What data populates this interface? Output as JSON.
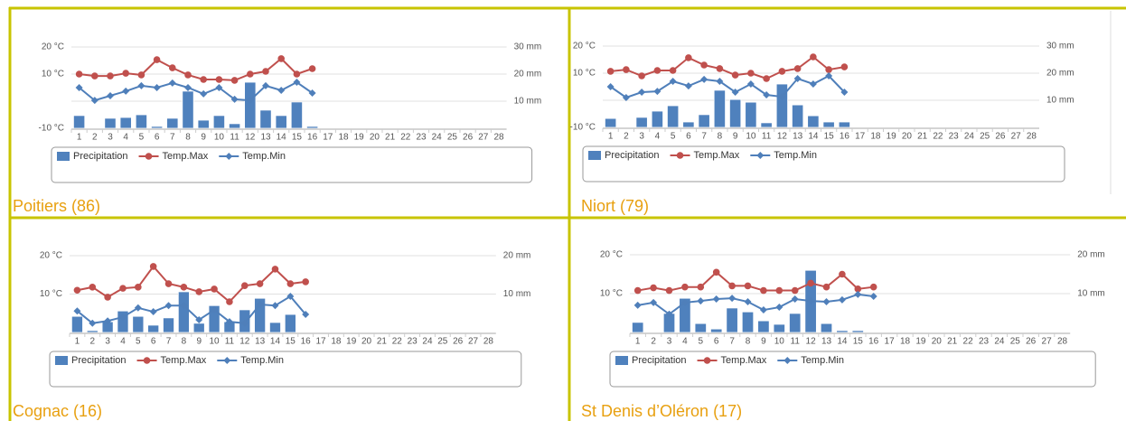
{
  "chart_data": [
    {
      "type": "combo",
      "title": "Poitiers (86)",
      "categories": [
        "1",
        "2",
        "3",
        "4",
        "5",
        "6",
        "7",
        "8",
        "9",
        "10",
        "11",
        "12",
        "13",
        "14",
        "15",
        "16",
        "17",
        "18",
        "19",
        "20",
        "21",
        "22",
        "23",
        "24",
        "25",
        "26",
        "27",
        "28"
      ],
      "series": [
        {
          "name": "Precipitation",
          "type": "bar",
          "axis": "y2",
          "color": "#4f81bd",
          "values": [
            4.7,
            0,
            3.7,
            4,
            5,
            0.7,
            3.7,
            13.7,
            3,
            4.7,
            1.7,
            17,
            6.7,
            4.7,
            9.7,
            0.7,
            null,
            null,
            null,
            null,
            null,
            null,
            null,
            null,
            null,
            null,
            null,
            null
          ]
        },
        {
          "name": "Temp.Max",
          "type": "line",
          "marker": "circle",
          "color": "#c0504d",
          "values": [
            10,
            9.3,
            9.3,
            10.3,
            9.7,
            15.3,
            12.3,
            9.7,
            8,
            8,
            7.7,
            10,
            11,
            15.7,
            10,
            12,
            null,
            null,
            null,
            null,
            null,
            null,
            null,
            null,
            null,
            null,
            null,
            null
          ]
        },
        {
          "name": "Temp.Min",
          "type": "line",
          "marker": "diamond",
          "color": "#4f7fba",
          "values": [
            5,
            0.3,
            2,
            3.7,
            5.7,
            5,
            6.7,
            5,
            2.7,
            5,
            0.7,
            0.3,
            5.7,
            4,
            7,
            3,
            null,
            null,
            null,
            null,
            null,
            null,
            null,
            null,
            null,
            null,
            null,
            null
          ]
        }
      ],
      "ylim": [
        -10,
        20
      ],
      "yticks": [
        {
          "value": -10,
          "label": "-10 °C"
        },
        {
          "value": 10,
          "label": "10 °C"
        },
        {
          "value": 20,
          "label": "20 °C"
        }
      ],
      "y2lim": [
        0,
        30
      ],
      "y2ticks": [
        {
          "value": 10,
          "label": "10 mm"
        },
        {
          "value": 20,
          "label": "20 mm"
        },
        {
          "value": 30,
          "label": "30 mm"
        }
      ],
      "grid": true
    },
    {
      "type": "combo",
      "title": "Niort (79)",
      "categories": [
        "1",
        "2",
        "3",
        "4",
        "5",
        "6",
        "7",
        "8",
        "9",
        "10",
        "11",
        "12",
        "13",
        "14",
        "15",
        "16",
        "17",
        "18",
        "19",
        "20",
        "21",
        "22",
        "23",
        "24",
        "25",
        "26",
        "27",
        "28"
      ],
      "series": [
        {
          "name": "Precipitation",
          "type": "bar",
          "axis": "y2",
          "color": "#4f81bd",
          "values": [
            3.3,
            0,
            3.7,
            6,
            8,
            2,
            4.7,
            13.7,
            10.3,
            9.3,
            1.7,
            16,
            8.3,
            4.3,
            2,
            2,
            null,
            null,
            null,
            null,
            null,
            null,
            null,
            null,
            null,
            null,
            null,
            null
          ]
        },
        {
          "name": "Temp.Max",
          "type": "line",
          "marker": "circle",
          "color": "#c0504d",
          "values": [
            10.7,
            11.3,
            9,
            11,
            11,
            15.7,
            13,
            11.7,
            9.3,
            10,
            8,
            10.7,
            11.7,
            16,
            11.3,
            12.3,
            null,
            null,
            null,
            null,
            null,
            null,
            null,
            null,
            null,
            null,
            null,
            null
          ]
        },
        {
          "name": "Temp.Min",
          "type": "line",
          "marker": "diamond",
          "color": "#4f7fba",
          "values": [
            5,
            1,
            3,
            3.3,
            7,
            5.3,
            7.7,
            7,
            3,
            6,
            2,
            1.3,
            8,
            6,
            9,
            3,
            null,
            null,
            null,
            null,
            null,
            null,
            null,
            null,
            null,
            null,
            null,
            null
          ]
        }
      ],
      "ylim": [
        -10,
        20
      ],
      "yticks": [
        {
          "value": -10,
          "label": "-10 °C"
        },
        {
          "value": 10,
          "label": "10 °C"
        },
        {
          "value": 20,
          "label": "20 °C"
        }
      ],
      "y2lim": [
        0,
        30
      ],
      "y2ticks": [
        {
          "value": 10,
          "label": "10 mm"
        },
        {
          "value": 20,
          "label": "20 mm"
        },
        {
          "value": 30,
          "label": "30 mm"
        }
      ],
      "grid": true
    },
    {
      "type": "combo",
      "title": "Cognac (16)",
      "categories": [
        "1",
        "2",
        "3",
        "4",
        "5",
        "6",
        "7",
        "8",
        "9",
        "10",
        "11",
        "12",
        "13",
        "14",
        "15",
        "16",
        "17",
        "18",
        "19",
        "20",
        "21",
        "22",
        "23",
        "24",
        "25",
        "26",
        "27",
        "28"
      ],
      "series": [
        {
          "name": "Precipitation",
          "type": "bar",
          "axis": "y2",
          "color": "#4f81bd",
          "values": [
            4.2,
            0.5,
            2.8,
            5.6,
            4.2,
            1.9,
            3.8,
            10.6,
            2.4,
            7,
            2.8,
            5.9,
            8.9,
            2.6,
            4.7,
            0,
            null,
            null,
            null,
            null,
            null,
            null,
            null,
            null,
            null,
            null,
            null,
            null
          ]
        },
        {
          "name": "Temp.Max",
          "type": "line",
          "marker": "circle",
          "color": "#c0504d",
          "values": [
            11,
            11.8,
            9.2,
            11.5,
            11.8,
            17.2,
            12.7,
            11.8,
            10.6,
            11.3,
            8,
            12.2,
            12.7,
            16.5,
            12.7,
            13.2,
            null,
            null,
            null,
            null,
            null,
            null,
            null,
            null,
            null,
            null,
            null,
            null
          ]
        },
        {
          "name": "Temp.Min",
          "type": "line",
          "marker": "diamond",
          "color": "#4f7fba",
          "values": [
            5.6,
            2.4,
            3,
            4,
            6.4,
            5.4,
            7,
            7,
            3.3,
            5.9,
            2.8,
            2.4,
            7.3,
            7,
            9.4,
            4.7,
            null,
            null,
            null,
            null,
            null,
            null,
            null,
            null,
            null,
            null,
            null,
            null
          ]
        }
      ],
      "ylim": [
        0,
        20
      ],
      "yticks": [
        {
          "value": 10,
          "label": "10 °C"
        },
        {
          "value": 20,
          "label": "20 °C"
        }
      ],
      "y2lim": [
        0,
        20
      ],
      "y2ticks": [
        {
          "value": 10,
          "label": "10 mm"
        },
        {
          "value": 20,
          "label": "20 mm"
        }
      ],
      "grid": true
    },
    {
      "type": "combo",
      "title": "St Denis d’Oléron (17)",
      "categories": [
        "1",
        "2",
        "3",
        "4",
        "5",
        "6",
        "7",
        "8",
        "9",
        "10",
        "11",
        "12",
        "13",
        "14",
        "15",
        "16",
        "17",
        "18",
        "19",
        "20",
        "21",
        "22",
        "23",
        "24",
        "25",
        "26",
        "27",
        "28"
      ],
      "series": [
        {
          "name": "Precipitation",
          "type": "bar",
          "axis": "y2",
          "color": "#4f81bd",
          "values": [
            2.6,
            0,
            4.9,
            8.8,
            2.3,
            0.9,
            6.3,
            5.3,
            3,
            2.1,
            4.9,
            16,
            2.3,
            0.5,
            0.5,
            0,
            null,
            null,
            null,
            null,
            null,
            null,
            null,
            null,
            null,
            null,
            null,
            null
          ]
        },
        {
          "name": "Temp.Max",
          "type": "line",
          "marker": "circle",
          "color": "#c0504d",
          "values": [
            10.8,
            11.5,
            10.8,
            11.7,
            11.7,
            15.5,
            12,
            12,
            10.8,
            10.8,
            10.8,
            12.7,
            11.7,
            15,
            11.2,
            11.7,
            null,
            null,
            null,
            null,
            null,
            null,
            null,
            null,
            null,
            null,
            null,
            null
          ]
        },
        {
          "name": "Temp.Min",
          "type": "line",
          "marker": "diamond",
          "color": "#4f7fba",
          "values": [
            7,
            7.7,
            4.7,
            7.7,
            8.1,
            8.6,
            8.8,
            7.9,
            5.8,
            6.5,
            8.6,
            8.1,
            7.9,
            8.4,
            9.8,
            9.3,
            null,
            null,
            null,
            null,
            null,
            null,
            null,
            null,
            null,
            null,
            null,
            null
          ]
        }
      ],
      "ylim": [
        0,
        20
      ],
      "yticks": [
        {
          "value": 10,
          "label": "10 °C"
        },
        {
          "value": 20,
          "label": "20 °C"
        }
      ],
      "y2lim": [
        0,
        20
      ],
      "y2ticks": [
        {
          "value": 10,
          "label": "10 mm"
        },
        {
          "value": 20,
          "label": "20 mm"
        }
      ],
      "grid": true
    }
  ]
}
